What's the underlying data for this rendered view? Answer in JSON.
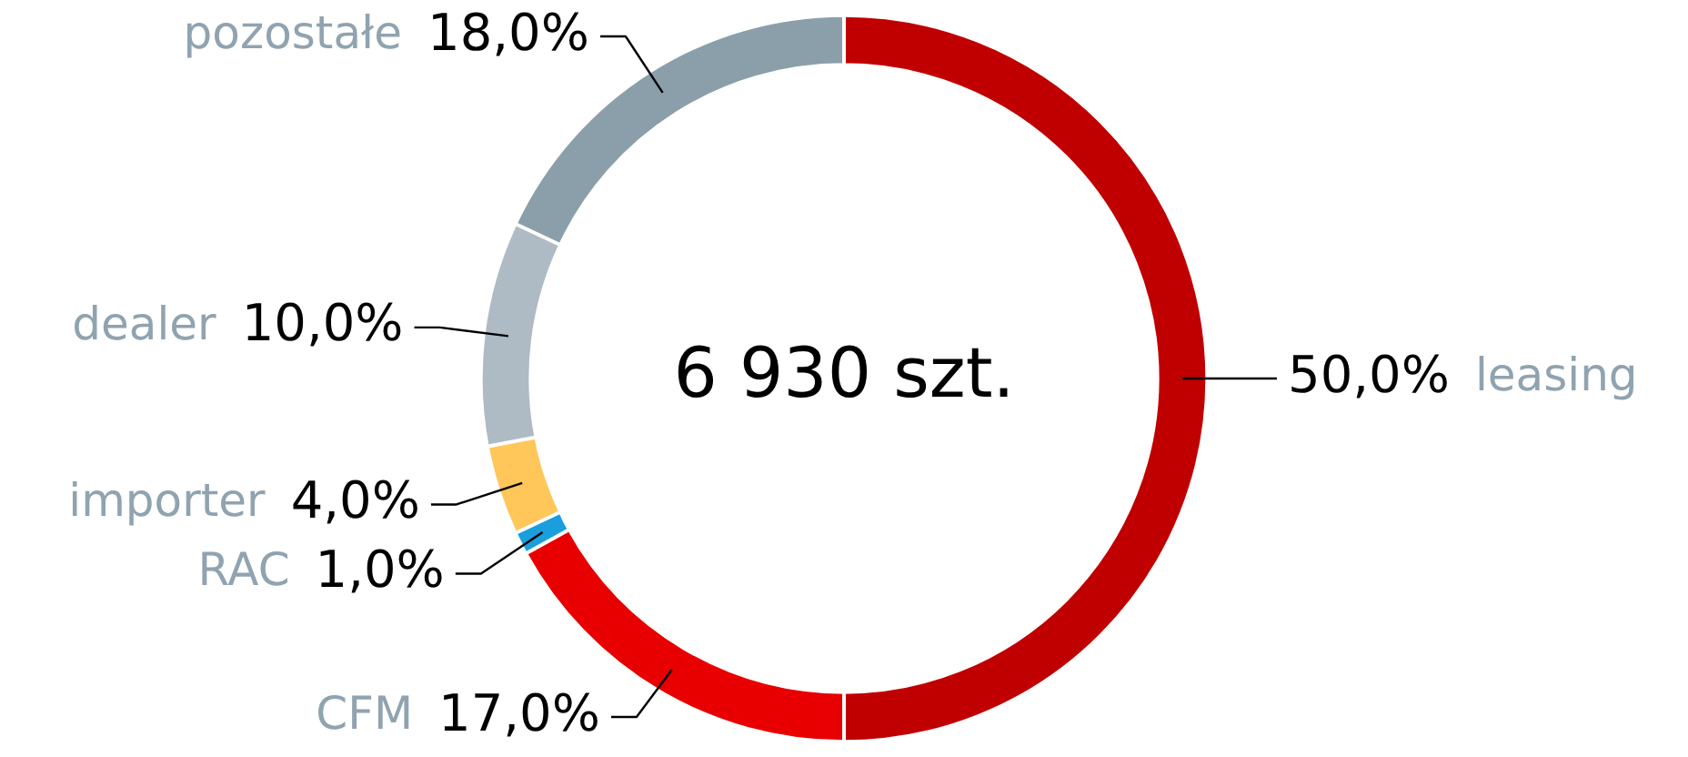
{
  "chart_data": {
    "type": "donut",
    "categories": [
      "leasing",
      "CFM",
      "RAC",
      "importer",
      "dealer",
      "pozostałe"
    ],
    "values": [
      50,
      17,
      1,
      4,
      10,
      18
    ],
    "colors": [
      "#c00000",
      "#e80000",
      "#1a9fdc",
      "#ffc65a",
      "#aebbc4",
      "#8a9faa"
    ],
    "value_labels": [
      "50,0%",
      "17,0%",
      "1,0%",
      "4,0%",
      "10,0%",
      "18,0%"
    ],
    "annotations": [
      "6 930 szt."
    ]
  }
}
